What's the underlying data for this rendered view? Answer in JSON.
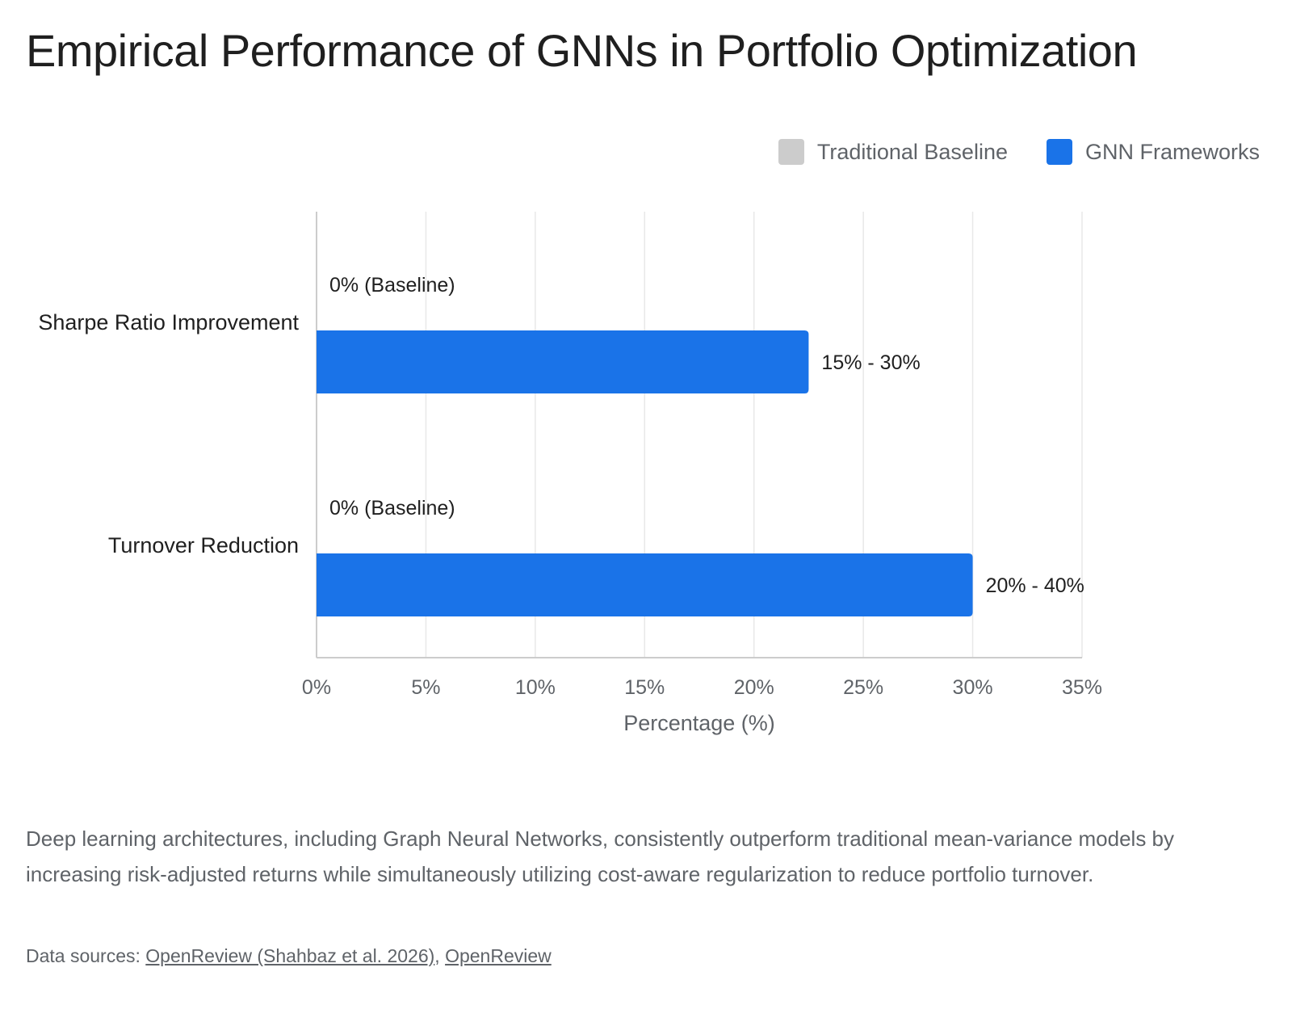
{
  "chart_data": {
    "type": "bar",
    "orientation": "horizontal",
    "title": "Empirical Performance of GNNs in Portfolio Optimization",
    "categories": [
      "Sharpe Ratio Improvement",
      "Turnover Reduction"
    ],
    "series": [
      {
        "name": "Traditional Baseline",
        "color": "#cccccc",
        "values": [
          0,
          0
        ],
        "labels": [
          "0% (Baseline)",
          "0% (Baseline)"
        ]
      },
      {
        "name": "GNN Frameworks",
        "color": "#1a73e8",
        "values": [
          22.5,
          30
        ],
        "labels": [
          "15% - 30%",
          "20% - 40%"
        ]
      }
    ],
    "xlabel": "Percentage (%)",
    "ylabel": "",
    "xlim": [
      0,
      35
    ],
    "xticks": [
      0,
      5,
      10,
      15,
      20,
      25,
      30,
      35
    ],
    "xtick_labels": [
      "0%",
      "5%",
      "10%",
      "15%",
      "20%",
      "25%",
      "30%",
      "35%"
    ],
    "grid": true,
    "legend_position": "top-right"
  },
  "description": "Deep learning architectures, including Graph Neural Networks, consistently outperform traditional mean-variance models by increasing risk-adjusted returns while simultaneously utilizing cost-aware regularization to reduce portfolio turnover.",
  "sources": {
    "prefix": "Data sources: ",
    "links": [
      {
        "label": "OpenReview (Shahbaz et al. 2026)"
      },
      {
        "label": "OpenReview"
      }
    ],
    "separator": ", "
  }
}
